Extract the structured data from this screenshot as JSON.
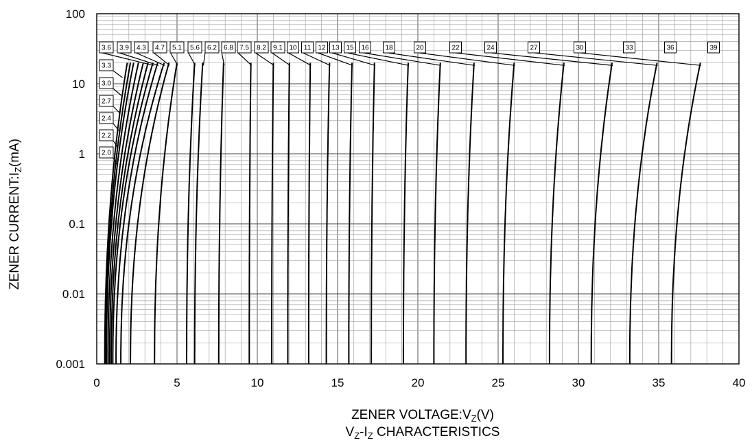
{
  "chart_data": {
    "type": "line",
    "title": "",
    "xlabel": {
      "prefix": "ZENER VOLTAGE:V",
      "sub": "Z",
      "suffix": "(V)"
    },
    "ylabel": {
      "prefix": "ZENER CURRENT:I",
      "sub": "Z",
      "suffix": "(mA)"
    },
    "subtitle": {
      "a": "V",
      "a_sub": "Z",
      "b": "-I",
      "b_sub": "Z",
      "c": " CHARACTERISTICS"
    },
    "x_scale": "linear",
    "y_scale": "log",
    "xlim": [
      0,
      40
    ],
    "ylim": [
      0.001,
      100
    ],
    "x_ticks": [
      "0",
      "5",
      "10",
      "15",
      "20",
      "25",
      "30",
      "35",
      "40"
    ],
    "y_ticks": [
      "0.001",
      "0.01",
      "0.1",
      "1",
      "10",
      "100"
    ],
    "grid": true,
    "y_range_of_curves": [
      0.001,
      20
    ],
    "series": [
      {
        "name": "2.0",
        "v_at_0_001mA": 0.5,
        "v_at_20mA": 1.9
      },
      {
        "name": "2.2",
        "v_at_0_001mA": 0.55,
        "v_at_20mA": 2.1
      },
      {
        "name": "2.4",
        "v_at_0_001mA": 0.6,
        "v_at_20mA": 2.3
      },
      {
        "name": "2.7",
        "v_at_0_001mA": 0.7,
        "v_at_20mA": 2.6
      },
      {
        "name": "3.0",
        "v_at_0_001mA": 0.8,
        "v_at_20mA": 2.9
      },
      {
        "name": "3.3",
        "v_at_0_001mA": 0.9,
        "v_at_20mA": 3.2
      },
      {
        "name": "3.6",
        "v_at_0_001mA": 1.0,
        "v_at_20mA": 3.5
      },
      {
        "name": "3.9",
        "v_at_0_001mA": 1.2,
        "v_at_20mA": 3.8
      },
      {
        "name": "4.3",
        "v_at_0_001mA": 1.5,
        "v_at_20mA": 4.2
      },
      {
        "name": "4.7",
        "v_at_0_001mA": 2.1,
        "v_at_20mA": 4.5
      },
      {
        "name": "5.1",
        "v_at_0_001mA": 3.6,
        "v_at_20mA": 5.0
      },
      {
        "name": "5.6",
        "v_at_0_001mA": 5.6,
        "v_at_20mA": 6.1
      },
      {
        "name": "6.2",
        "v_at_0_001mA": 6.1,
        "v_at_20mA": 6.6
      },
      {
        "name": "6.8",
        "v_at_0_001mA": 7.6,
        "v_at_20mA": 7.9
      },
      {
        "name": "7.5",
        "v_at_0_001mA": 9.5,
        "v_at_20mA": 9.6
      },
      {
        "name": "8.2",
        "v_at_0_001mA": 10.9,
        "v_at_20mA": 11.0
      },
      {
        "name": "9.1",
        "v_at_0_001mA": 11.9,
        "v_at_20mA": 12.0
      },
      {
        "name": "10",
        "v_at_0_001mA": 13.2,
        "v_at_20mA": 13.3
      },
      {
        "name": "11",
        "v_at_0_001mA": 14.3,
        "v_at_20mA": 14.5
      },
      {
        "name": "12",
        "v_at_0_001mA": 15.7,
        "v_at_20mA": 15.9
      },
      {
        "name": "13",
        "v_at_0_001mA": 17.1,
        "v_at_20mA": 17.3
      },
      {
        "name": "15",
        "v_at_0_001mA": 19.1,
        "v_at_20mA": 19.4
      },
      {
        "name": "16",
        "v_at_0_001mA": 21.0,
        "v_at_20mA": 21.4
      },
      {
        "name": "18",
        "v_at_0_001mA": 23.0,
        "v_at_20mA": 23.5
      },
      {
        "name": "20",
        "v_at_0_001mA": 25.3,
        "v_at_20mA": 26.0
      },
      {
        "name": "22",
        "v_at_0_001mA": 28.2,
        "v_at_20mA": 29.1
      },
      {
        "name": "24",
        "v_at_0_001mA": 30.8,
        "v_at_20mA": 32.1
      },
      {
        "name": "27",
        "v_at_0_001mA": 33.2,
        "v_at_20mA": 34.9
      },
      {
        "name": "30",
        "v_at_0_001mA": 35.8,
        "v_at_20mA": 37.6
      }
    ],
    "extra_labels": [
      "33",
      "36",
      "39"
    ]
  }
}
